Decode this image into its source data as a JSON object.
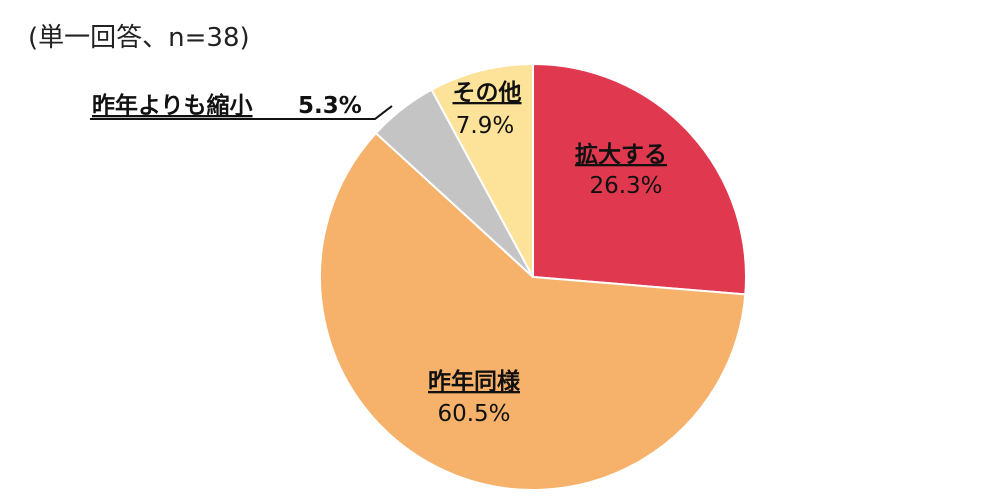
{
  "note": "(単一回答、n=38)",
  "colors": {
    "expand": "#e0394f",
    "same": "#f6b26b",
    "shrink": "#c4c4c4",
    "other": "#fde29a"
  },
  "chart_data": {
    "type": "pie",
    "unit": "%",
    "start": "12 o'clock",
    "direction": "clockwise",
    "slices": [
      {
        "label": "拡大する",
        "value": 26.3,
        "display": "26.3%",
        "color": "#e0394f"
      },
      {
        "label": "昨年同様",
        "value": 60.5,
        "display": "60.5%",
        "color": "#f6b26b"
      },
      {
        "label": "昨年よりも縮小",
        "value": 5.3,
        "display": "5.3%",
        "color": "#c4c4c4"
      },
      {
        "label": "その他",
        "value": 7.9,
        "display": "7.9%",
        "color": "#fde29a"
      }
    ],
    "labels": {
      "expand": {
        "name": "拡大する",
        "value": "26.3%"
      },
      "same": {
        "name": "昨年同様",
        "value": "60.5%"
      },
      "shrink": {
        "name": "昨年よりも縮小",
        "value": "5.3%"
      },
      "other": {
        "name": "その他",
        "value": "7.9%"
      }
    }
  }
}
